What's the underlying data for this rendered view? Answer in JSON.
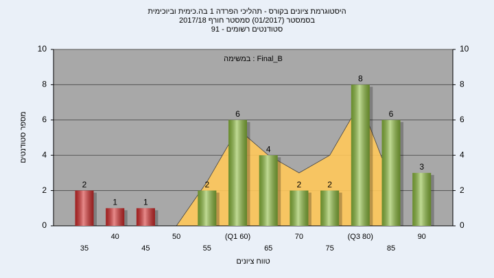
{
  "chart_data": {
    "type": "bar",
    "title": "היסטוגרמת ציונים בקורס - תהליכי הפרדה 1 בה.כימית וביוכימית",
    "subtitle": "בסמסטר  (01/2017)  סמסטר חורף 2017/18",
    "subtitle2": "סטודנטים רשומים - 91",
    "annotation": "במשימה : Final_B",
    "x_label": "טווח ציונים",
    "y_label": "מספר סטודנטים",
    "categories": [
      "35",
      "40",
      "45",
      "50",
      "55",
      "(Q1 60)",
      "65",
      "70",
      "75",
      "(Q3 80)",
      "85",
      "90"
    ],
    "values": [
      2,
      1,
      1,
      null,
      2,
      6,
      4,
      2,
      2,
      8,
      6,
      3
    ],
    "colors": [
      "#d42a2a",
      "#d42a2a",
      "#d42a2a",
      null,
      "#8cbc3c",
      "#8cbc3c",
      "#8cbc3c",
      "#8cbc3c",
      "#8cbc3c",
      "#8cbc3c",
      "#8cbc3c",
      "#8cbc3c"
    ],
    "area_values": [
      null,
      null,
      null,
      0,
      2.5,
      5.5,
      4,
      3,
      4,
      7,
      2.5,
      null
    ],
    "area_color": "#ffc85a",
    "ylim": [
      0,
      10
    ],
    "yticks": [
      0,
      2,
      4,
      6,
      8,
      10
    ],
    "y2lim": [
      0,
      10
    ],
    "y2ticks": [
      0,
      2,
      4,
      6,
      8,
      10
    ],
    "grid": true
  }
}
